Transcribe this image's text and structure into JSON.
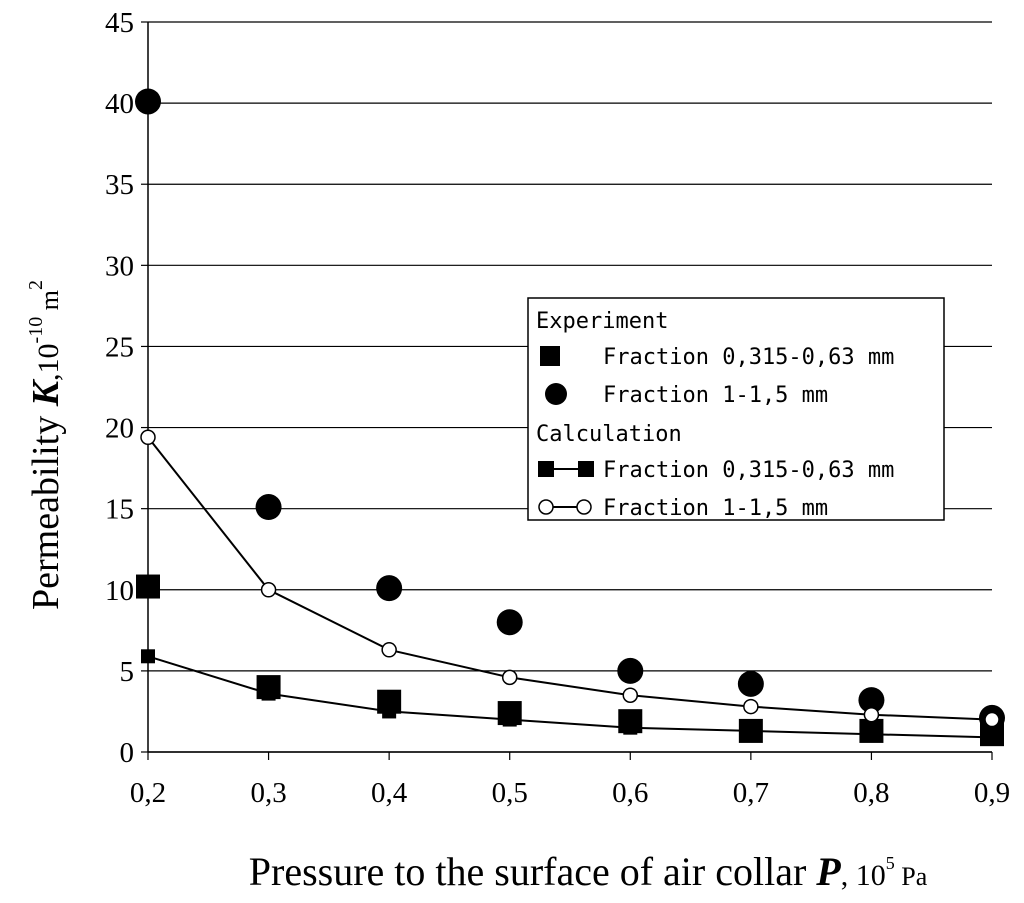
{
  "chart_data": {
    "type": "scatter",
    "x": [
      "0,2",
      "0,3",
      "0,4",
      "0,5",
      "0,6",
      "0,7",
      "0,8",
      "0,9"
    ],
    "x_values": [
      0.2,
      0.3,
      0.4,
      0.5,
      0.6,
      0.7,
      0.8,
      0.9
    ],
    "xlim": [
      0.2,
      0.9
    ],
    "ylim": [
      0,
      45
    ],
    "y_ticks": [
      0,
      5,
      10,
      15,
      20,
      25,
      30,
      35,
      40,
      45
    ],
    "grid": "horizontal",
    "legend_position": "right",
    "xlabel": {
      "text": "Pressure to the surface of air collar ",
      "symbol": "P",
      "unit_base": ", 10",
      "unit_exp": "5",
      "unit_tail": " Pa"
    },
    "ylabel": {
      "text": "Permeability ",
      "symbol": "K",
      "unit_base": ",10",
      "unit_exp": "-10",
      "unit_m": " m",
      "unit_exp2": "2"
    },
    "legend": {
      "group1": "Experiment",
      "group2": "Calculation"
    },
    "series": [
      {
        "name": "Fraction 0,315-0,63 mm",
        "group": "Experiment",
        "marker": "square",
        "line": false,
        "values": [
          10.2,
          4.0,
          3.1,
          2.4,
          1.9,
          1.3,
          1.3,
          1.1
        ]
      },
      {
        "name": "Fraction 1-1,5 mm",
        "group": "Experiment",
        "marker": "circle",
        "line": false,
        "values": [
          40.1,
          15.1,
          10.1,
          8.0,
          5.0,
          4.2,
          3.2,
          2.1
        ]
      },
      {
        "name": "Fraction 0,315-0,63 mm",
        "group": "Calculation",
        "marker": "square-small",
        "line": true,
        "values": [
          5.9,
          3.6,
          2.5,
          2.0,
          1.5,
          1.3,
          1.1,
          0.9
        ]
      },
      {
        "name": "Fraction 1-1,5 mm",
        "group": "Calculation",
        "marker": "circle-open",
        "line": true,
        "values": [
          19.4,
          10.0,
          6.3,
          4.6,
          3.5,
          2.8,
          2.3,
          2.0
        ]
      }
    ]
  }
}
